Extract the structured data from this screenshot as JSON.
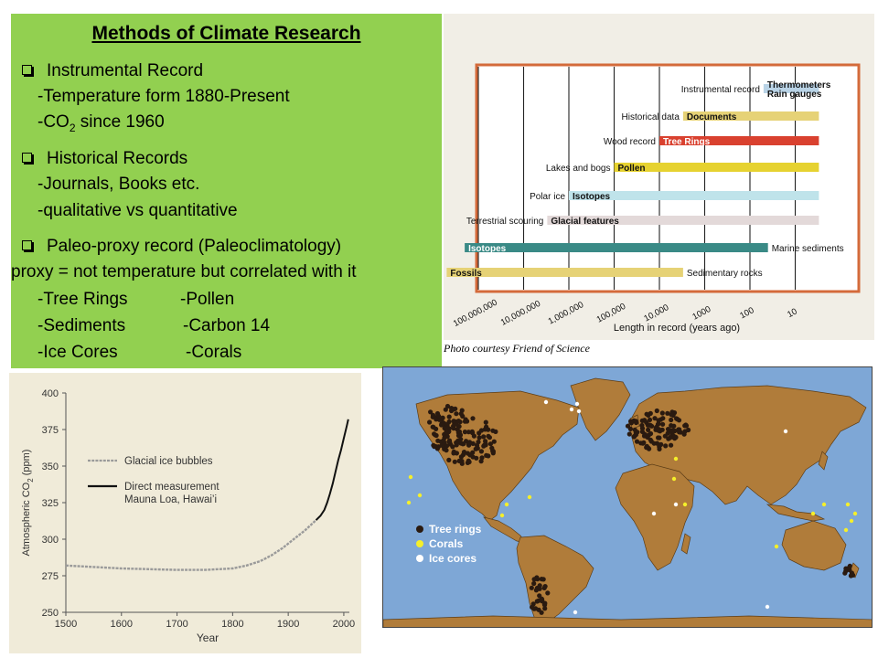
{
  "slide": {
    "title": "Methods of Climate Research",
    "items": [
      "Instrumental Record",
      "-Temperature form 1880-Present",
      "-CO",
      "2",
      " since 1960",
      "Historical Records",
      "-Journals, Books etc.",
      "-qualitative vs quantitative",
      "Paleo-proxy record (Paleoclimatology)",
      "proxy = not temperature but correlated with it",
      "-Tree Rings",
      "-Pollen",
      "-Sediments",
      "-Carbon 14",
      "-Ice Cores",
      "-Corals"
    ],
    "colors": {
      "panel": "#92d050"
    }
  },
  "timeline": {
    "credit": "Photo courtesy Friend of Science",
    "axis_label": "Length in record (years ago)",
    "ticks": [
      "100,000,000",
      "10,000,000",
      "1,000,000",
      "100,000",
      "10,000",
      "1000",
      "100",
      "10"
    ],
    "rows": [
      {
        "label": "Instrumental record",
        "bar_text": "Thermometers\nRain gauges",
        "color": "#b9d3e6",
        "from": 50,
        "to": 1
      },
      {
        "label": "Historical data",
        "bar_text": "Documents",
        "color": "#e6d276",
        "from": 3000,
        "to": 1
      },
      {
        "label": "Wood record",
        "bar_text": "Tree Rings",
        "color": "#d9412f",
        "from": 10000,
        "to": 1
      },
      {
        "label": "Lakes and bogs",
        "bar_text": "Pollen",
        "color": "#e6d230",
        "from": 100000,
        "to": 1
      },
      {
        "label": "Polar ice",
        "bar_text": "Isotopes",
        "color": "#bfe3ea",
        "from": 1000000,
        "to": 1
      },
      {
        "label": "Terrestrial scouring",
        "bar_text": "Glacial features",
        "color": "#e3d9d9",
        "from": 3000000,
        "to": 1
      },
      {
        "label": "Marine sediments",
        "bar_text": "Isotopes",
        "color": "#3a8a86",
        "from": 200000000,
        "to": 40
      },
      {
        "label": "Sedimentary rocks",
        "bar_text": "Fossils",
        "color": "#e6d276",
        "from": 500000000,
        "to": 3000
      }
    ]
  },
  "chart_data": {
    "type": "line",
    "title": "",
    "xlabel": "Year",
    "ylabel": "Atmospheric CO2 (ppm)",
    "ylabel_parts": [
      "Atmospheric CO",
      "2",
      " (ppm)"
    ],
    "xlim": [
      1500,
      2010
    ],
    "ylim": [
      250,
      400
    ],
    "x_ticks": [
      "1500",
      "1600",
      "1700",
      "1800",
      "1900",
      "2000"
    ],
    "y_ticks": [
      "400",
      "375",
      "350",
      "325",
      "300",
      "275",
      "250"
    ],
    "series": [
      {
        "name": "Glacial ice bubbles",
        "color": "#9a9a9a",
        "x": [
          1500,
          1550,
          1600,
          1650,
          1700,
          1750,
          1800,
          1825,
          1850,
          1870,
          1890,
          1910,
          1930,
          1950
        ],
        "y": [
          282,
          281,
          280,
          279.5,
          279,
          279,
          280,
          282,
          285,
          289,
          294,
          300,
          306,
          313
        ]
      },
      {
        "name": "Direct measurement\nMauna Loa, Hawai’i",
        "color": "#111111",
        "x": [
          1950,
          1958,
          1965,
          1970,
          1975,
          1980,
          1985,
          1990,
          1995,
          2000,
          2005,
          2008
        ],
        "y": [
          313,
          316,
          320,
          325,
          331,
          338,
          346,
          354,
          361,
          369,
          377,
          382
        ]
      }
    ]
  },
  "map": {
    "legend": [
      "Tree rings",
      "Corals",
      "Ice cores"
    ],
    "colors": {
      "ocean": "#7ea7d6",
      "land": "#b07c3a",
      "tree": "#2a1a10",
      "coral": "#f5ef2a",
      "ice": "#ffffff"
    }
  }
}
